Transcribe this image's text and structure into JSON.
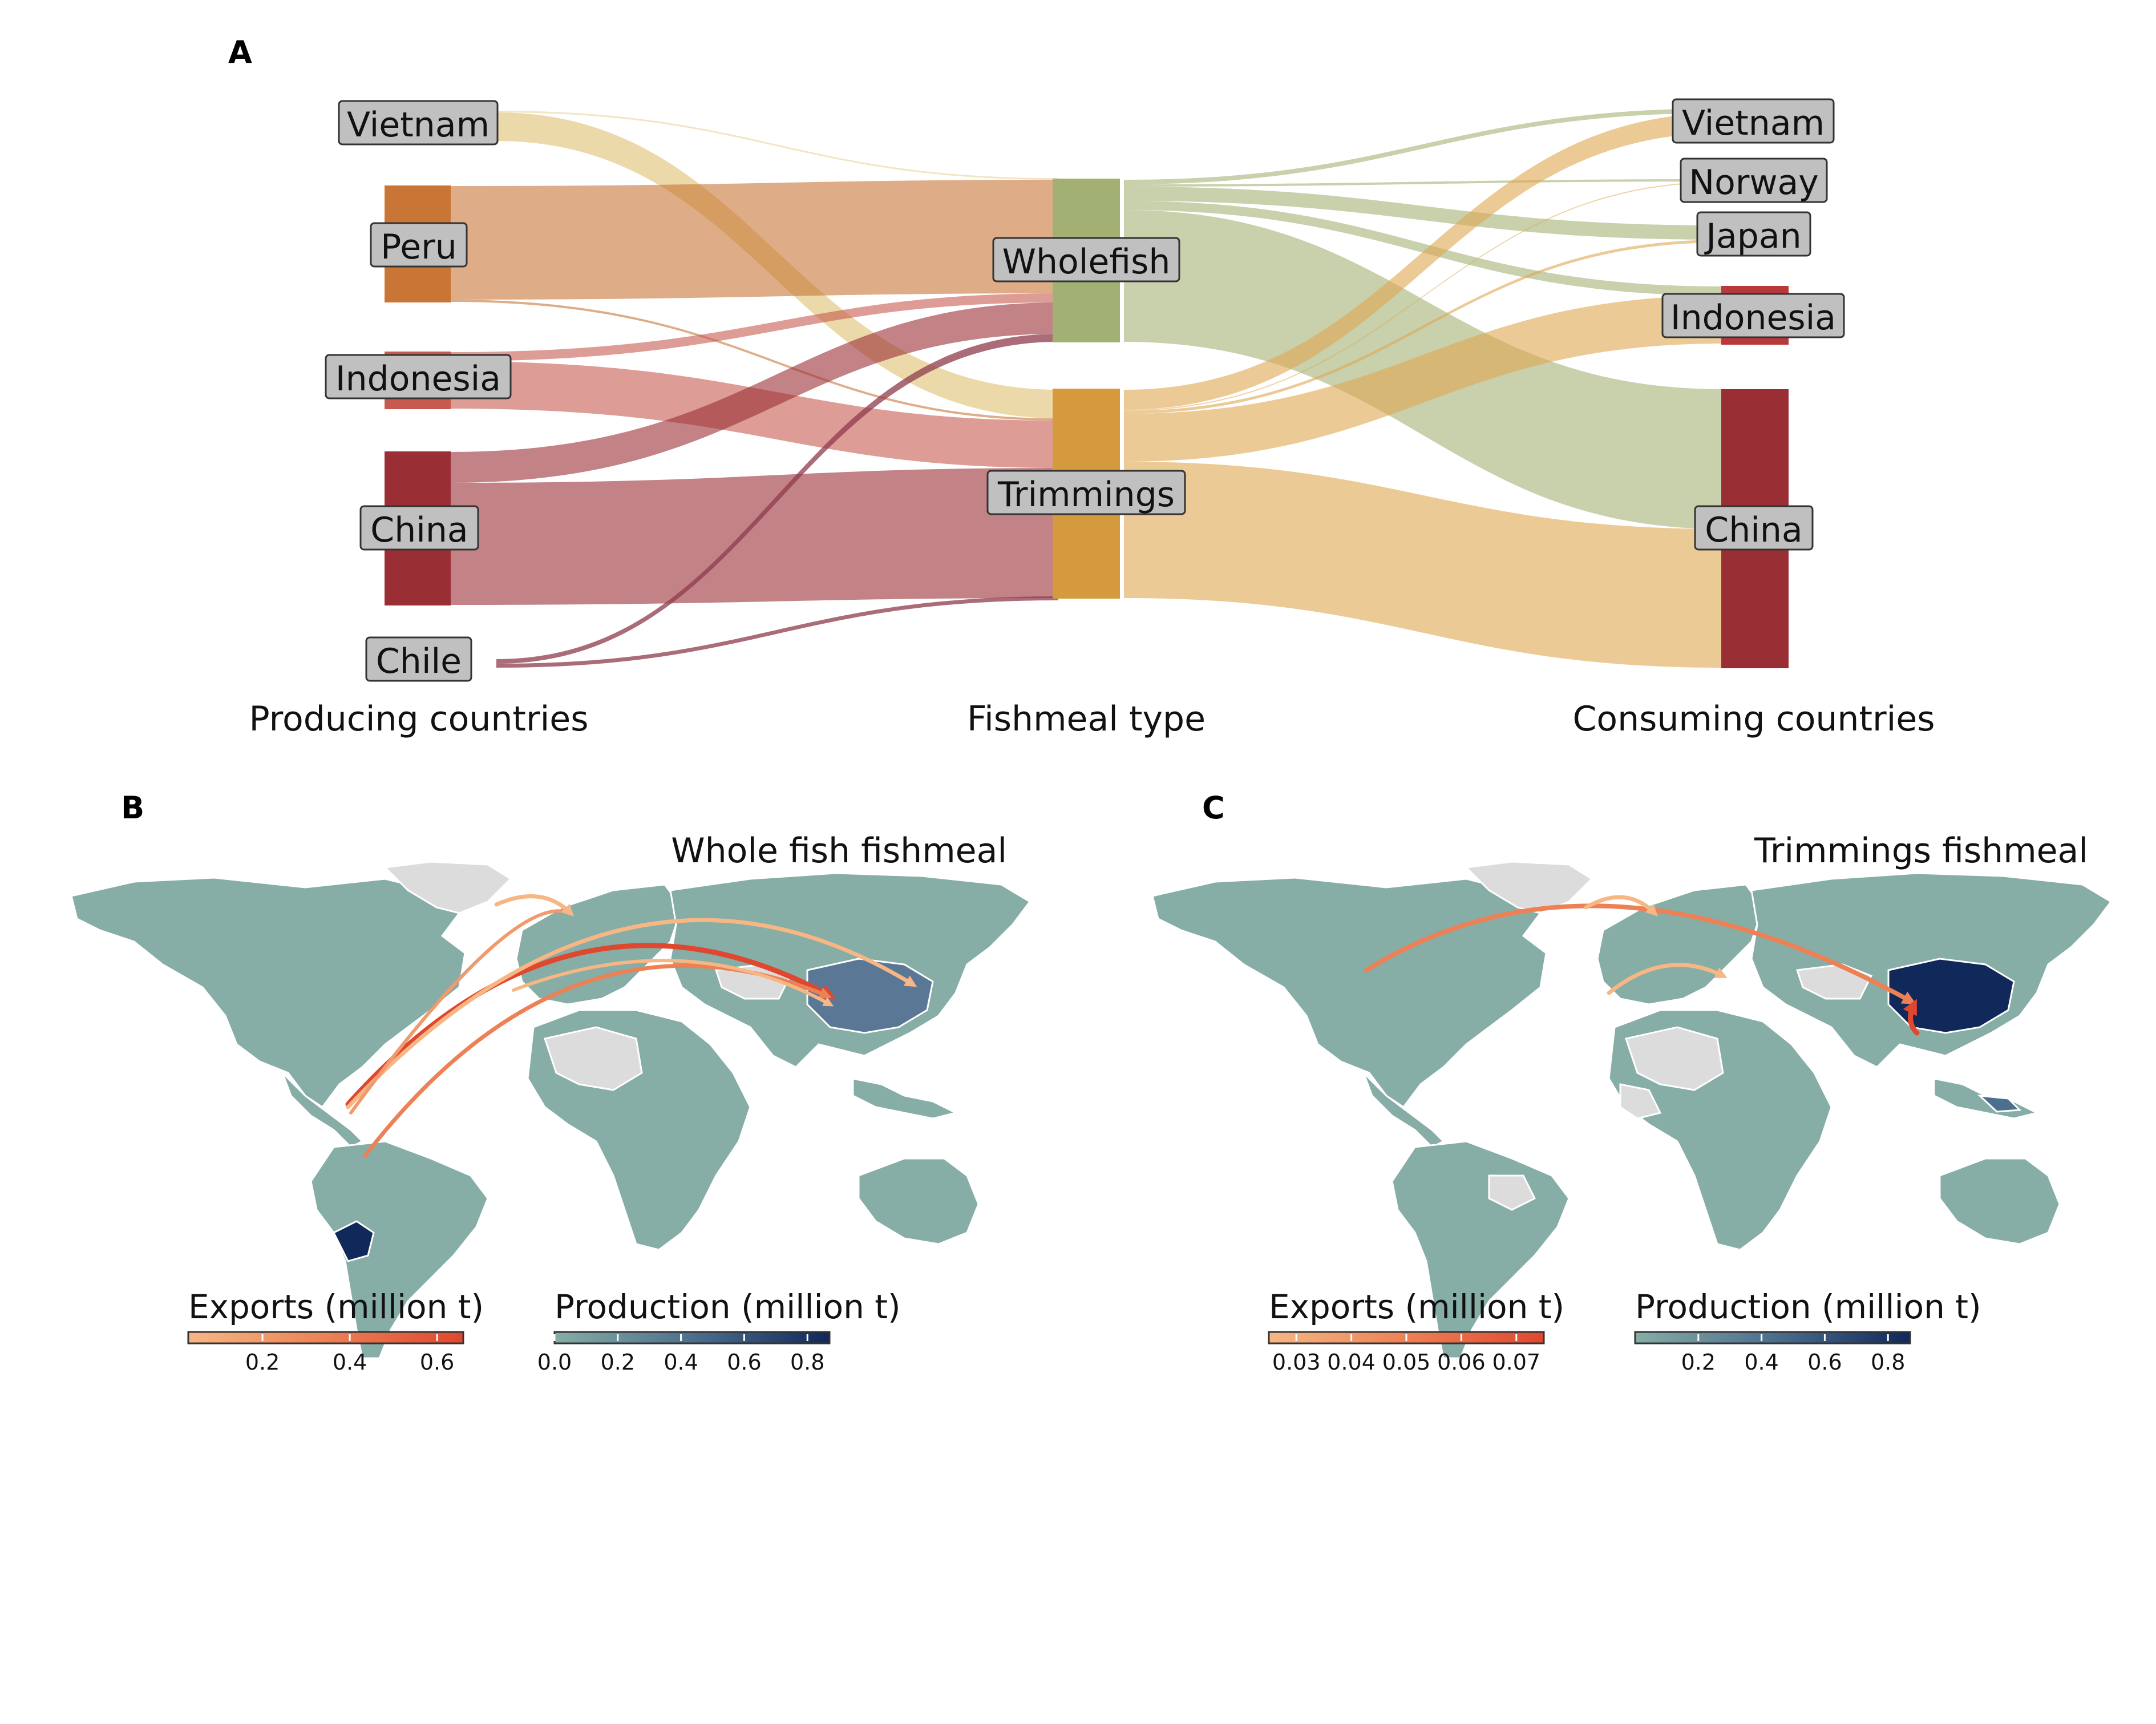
{
  "panels": {
    "a_letter": "A",
    "b_letter": "B",
    "c_letter": "C"
  },
  "chart_data": [
    {
      "type": "sankey",
      "stage_labels": [
        "Producing countries",
        "Fishmeal type",
        "Consuming countries"
      ],
      "producers": [
        "Vietnam",
        "Peru",
        "Indonesia",
        "China",
        "Chile"
      ],
      "fishmeal_types": [
        "Wholefish",
        "Trimmings"
      ],
      "consumers": [
        "Vietnam",
        "Norway",
        "Japan",
        "Indonesia",
        "China"
      ],
      "colors": {
        "Vietnam_producer": "#e6cf94",
        "Peru_producer": "#c87535",
        "Indonesia_producer": "#c65a4e",
        "China_producer": "#992f35",
        "Chile_producer": "#8e3b4c",
        "Wholefish": "#a3b074",
        "Trimmings": "#d49a3d",
        "Vietnam_consumer": "#e6cf94",
        "Norway_consumer": "#ffffff",
        "Japan_consumer": "#ffffff",
        "Indonesia_consumer": "#b8383b",
        "China_consumer": "#992f35"
      },
      "flows_producer_to_type": [
        {
          "from": "Vietnam",
          "to": "Wholefish",
          "value": 0.003
        },
        {
          "from": "Vietnam",
          "to": "Trimmings",
          "value": 0.12
        },
        {
          "from": "Peru",
          "to": "Wholefish",
          "value": 0.56
        },
        {
          "from": "Peru",
          "to": "Trimmings",
          "value": 0.01
        },
        {
          "from": "Indonesia",
          "to": "Wholefish",
          "value": 0.03
        },
        {
          "from": "Indonesia",
          "to": "Trimmings",
          "value": 0.22
        },
        {
          "from": "China",
          "to": "Wholefish",
          "value": 0.14
        },
        {
          "from": "China",
          "to": "Trimmings",
          "value": 0.62
        },
        {
          "from": "Chile",
          "to": "Wholefish",
          "value": 0.02
        },
        {
          "from": "Chile",
          "to": "Trimmings",
          "value": 0.02
        }
      ],
      "flows_type_to_consumer": [
        {
          "from": "Wholefish",
          "to": "Vietnam",
          "value": 0.02
        },
        {
          "from": "Wholefish",
          "to": "Norway",
          "value": 0.01
        },
        {
          "from": "Wholefish",
          "to": "Japan",
          "value": 0.06
        },
        {
          "from": "Wholefish",
          "to": "Indonesia",
          "value": 0.05
        },
        {
          "from": "Wholefish",
          "to": "China",
          "value": 0.63
        },
        {
          "from": "Trimmings",
          "to": "Vietnam",
          "value": 0.1
        },
        {
          "from": "Trimmings",
          "to": "Norway",
          "value": 0.003
        },
        {
          "from": "Trimmings",
          "to": "Japan",
          "value": 0.01
        },
        {
          "from": "Trimmings",
          "to": "Indonesia",
          "value": 0.23
        },
        {
          "from": "Trimmings",
          "to": "China",
          "value": 0.67
        }
      ]
    },
    {
      "type": "map",
      "title": "Whole fish fishmeal",
      "legend_exports": {
        "title": "Exports (million t)",
        "ticks": [
          "0.2",
          "0.4",
          "0.6"
        ],
        "range": [
          0.03,
          0.66
        ],
        "colors": [
          "#f6b784",
          "#ed8155",
          "#e0472f"
        ]
      },
      "legend_production": {
        "title": "Production (million t)",
        "ticks": [
          "0.0",
          "0.2",
          "0.4",
          "0.6",
          "0.8"
        ],
        "range": [
          0.0,
          0.87
        ],
        "colors": [
          "#86ada6",
          "#4c6f8e",
          "#11285a"
        ]
      },
      "highlighted_producers": [
        "Peru",
        "China"
      ],
      "arrows": [
        {
          "from": "Peru",
          "to": "China",
          "value": 0.6
        },
        {
          "from": "Peru",
          "to": "Japan",
          "value": 0.2
        },
        {
          "from": "Peru",
          "to": "Norway",
          "value": 0.1
        },
        {
          "from": "Chile",
          "to": "China",
          "value": 0.1
        },
        {
          "from": "Chile",
          "to": "Japan",
          "value": 0.05
        },
        {
          "from": "Greenland",
          "to": "Norway",
          "value": 0.05
        }
      ]
    },
    {
      "type": "map",
      "title": "Trimmings fishmeal",
      "legend_exports": {
        "title": "Exports (million t)",
        "ticks": [
          "0.03",
          "0.04",
          "0.05",
          "0.06",
          "0.07"
        ],
        "range": [
          0.025,
          0.075
        ],
        "colors": [
          "#f6b784",
          "#ed8155",
          "#e0472f"
        ]
      },
      "legend_production": {
        "title": "Production (million t)",
        "ticks": [
          "0.2",
          "0.4",
          "0.6",
          "0.8"
        ],
        "range": [
          0.0,
          0.87
        ],
        "colors": [
          "#86ada6",
          "#4c6f8e",
          "#11285a"
        ]
      },
      "highlighted_producers": [
        "China"
      ],
      "arrows": [
        {
          "from": "USA",
          "to": "China",
          "value": 0.04
        },
        {
          "from": "Greenland",
          "to": "Norway",
          "value": 0.03
        },
        {
          "from": "Mauritania",
          "to": "Turkey",
          "value": 0.03
        },
        {
          "from": "Vietnam",
          "to": "China",
          "value": 0.07
        }
      ]
    }
  ]
}
